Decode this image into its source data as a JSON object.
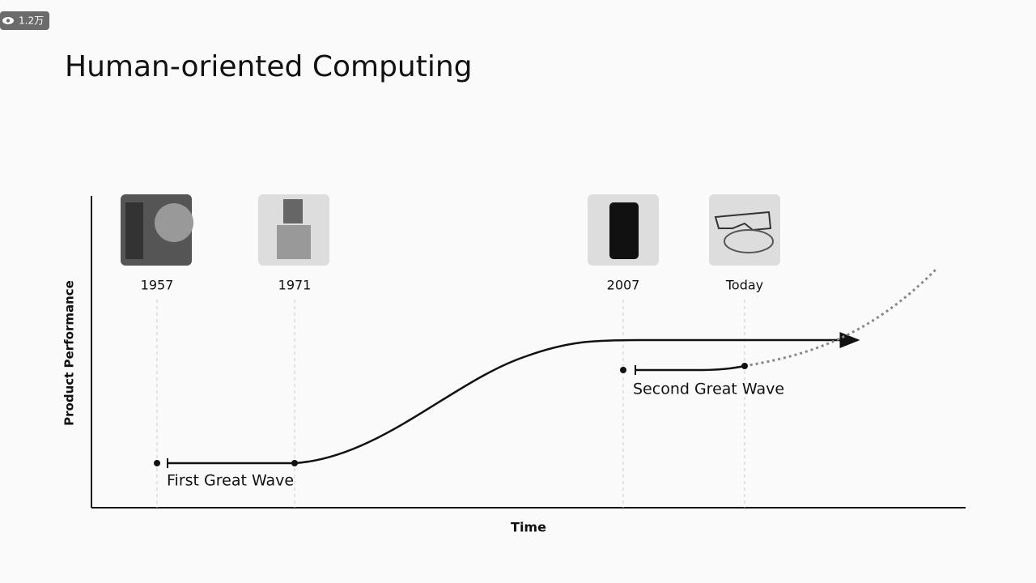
{
  "badge": "1.2万",
  "title": "Human-oriented Computing",
  "axes": {
    "y_label": "Product Performance",
    "x_label": "Time"
  },
  "milestones": [
    {
      "label": "1957"
    },
    {
      "label": "1971"
    },
    {
      "label": "2007"
    },
    {
      "label": "Today"
    }
  ],
  "waves": [
    {
      "label": "First Great Wave"
    },
    {
      "label": "Second Great Wave"
    }
  ]
}
